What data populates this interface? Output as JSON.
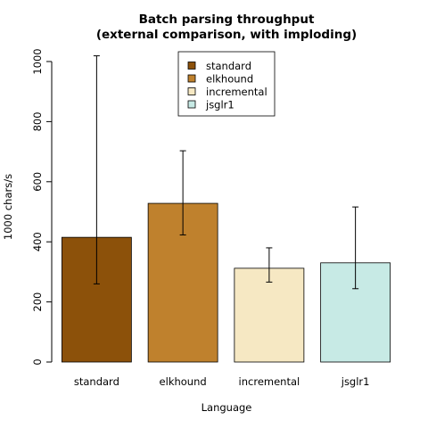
{
  "chart_data": {
    "type": "bar",
    "title": "Batch parsing throughput",
    "subtitle": "(external comparison, with imploding)",
    "xlabel": "Language",
    "ylabel": "1000 chars/s",
    "ylim": [
      0,
      1000
    ],
    "yticks": [
      0,
      200,
      400,
      600,
      800,
      1000
    ],
    "categories": [
      "standard",
      "elkhound",
      "incremental",
      "jsglr1"
    ],
    "values": [
      415,
      528,
      312,
      330
    ],
    "error_low": [
      260,
      423,
      266,
      244
    ],
    "error_high": [
      1019,
      703,
      380,
      516
    ],
    "colors": [
      "#8c510a",
      "#bf812d",
      "#f6e8c3",
      "#c7eae5"
    ],
    "legend": {
      "placement": "top-center",
      "entries": [
        "standard",
        "elkhound",
        "incremental",
        "jsglr1"
      ]
    },
    "grid": false
  }
}
